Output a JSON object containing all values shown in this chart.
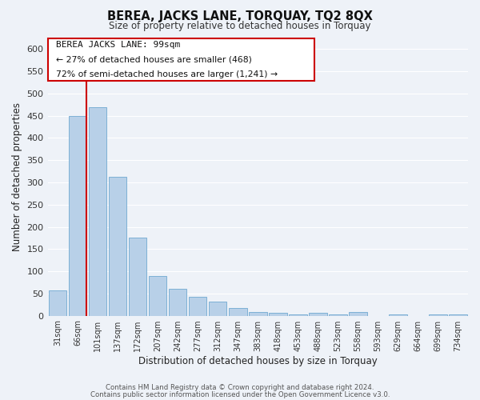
{
  "title": "BEREA, JACKS LANE, TORQUAY, TQ2 8QX",
  "subtitle": "Size of property relative to detached houses in Torquay",
  "xlabel": "Distribution of detached houses by size in Torquay",
  "ylabel": "Number of detached properties",
  "bar_labels": [
    "31sqm",
    "66sqm",
    "101sqm",
    "137sqm",
    "172sqm",
    "207sqm",
    "242sqm",
    "277sqm",
    "312sqm",
    "347sqm",
    "383sqm",
    "418sqm",
    "453sqm",
    "488sqm",
    "523sqm",
    "558sqm",
    "593sqm",
    "629sqm",
    "664sqm",
    "699sqm",
    "734sqm"
  ],
  "bar_values": [
    57,
    450,
    470,
    312,
    175,
    90,
    60,
    42,
    32,
    17,
    8,
    7,
    2,
    7,
    2,
    8,
    0,
    2,
    0,
    2,
    3
  ],
  "bar_color": "#b8d0e8",
  "bar_edge_color": "#6fa8d0",
  "highlight_color": "#cc0000",
  "annotation_title": "BEREA JACKS LANE: 99sqm",
  "annotation_line1": "← 27% of detached houses are smaller (468)",
  "annotation_line2": "72% of semi-detached houses are larger (1,241) →",
  "yticks": [
    0,
    50,
    100,
    150,
    200,
    250,
    300,
    350,
    400,
    450,
    500,
    550,
    600
  ],
  "ylim": [
    0,
    625
  ],
  "footer1": "Contains HM Land Registry data © Crown copyright and database right 2024.",
  "footer2": "Contains public sector information licensed under the Open Government Licence v3.0.",
  "background_color": "#eef2f8",
  "grid_color": "#ffffff"
}
